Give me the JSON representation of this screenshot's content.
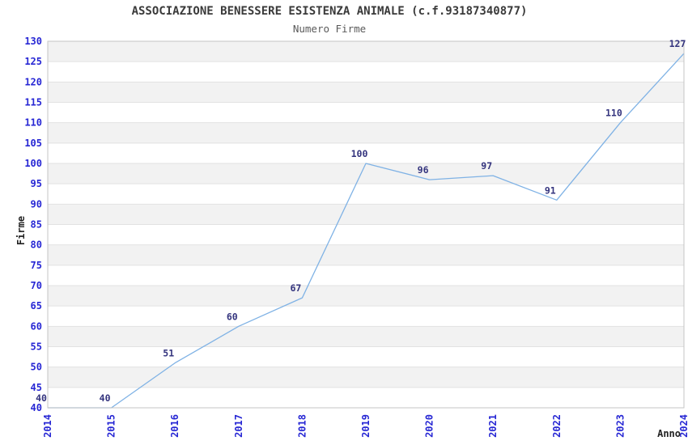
{
  "chart_data": {
    "type": "line",
    "title": "ASSOCIAZIONE BENESSERE ESISTENZA ANIMALE (c.f.93187340877)",
    "subtitle": "Numero Firme",
    "xlabel": "Anno",
    "ylabel": "Firme",
    "x": [
      2014,
      2015,
      2016,
      2017,
      2018,
      2019,
      2020,
      2021,
      2022,
      2023,
      2024
    ],
    "values": [
      40,
      40,
      51,
      60,
      67,
      100,
      96,
      97,
      91,
      110,
      127
    ],
    "ylim": [
      40,
      130
    ],
    "ytick_step": 5,
    "grid": "horizontal-bands",
    "legend": "none",
    "point_labels_visible": true,
    "x_tick_rotation": -90,
    "colors": {
      "line": "#7FB2E5",
      "tick_label": "#2727D4",
      "point_label": "#34347E",
      "band_gray": "#F2F2F2",
      "band_white": "#FFFFFF",
      "grid_line": "#E2E2E2",
      "border": "#C4C4C4",
      "title": "#3A3A3A",
      "subtitle": "#5A5A5A",
      "axis_label": "#222222",
      "background": "#FFFFFF"
    }
  }
}
